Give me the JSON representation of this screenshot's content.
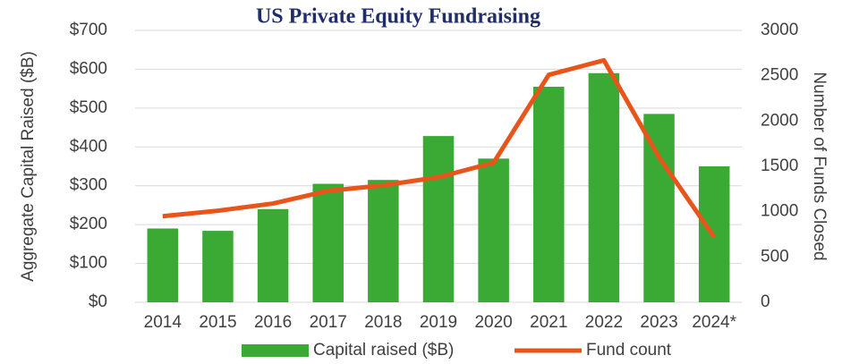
{
  "chart_data": {
    "type": "bar_line",
    "title": "US Private Equity Fundraising",
    "categories": [
      "2014",
      "2015",
      "2016",
      "2017",
      "2018",
      "2019",
      "2020",
      "2021",
      "2022",
      "2023",
      "2024*"
    ],
    "series": [
      {
        "name": "Capital raised ($B)",
        "type": "bar",
        "color": "#3aaa35",
        "values": [
          190,
          184,
          240,
          305,
          315,
          428,
          370,
          555,
          590,
          485,
          350
        ]
      },
      {
        "name": "Fund count",
        "type": "line",
        "axis": "y2",
        "color": "#e8541a",
        "values": [
          950,
          1010,
          1090,
          1230,
          1290,
          1380,
          1540,
          2510,
          2670,
          1600,
          720
        ]
      }
    ],
    "ylabel": "Aggregate Capital Raised ($B)",
    "y2label": "Number of Funds Closed",
    "ylim": [
      0,
      700
    ],
    "yticks": [
      {
        "value": 0,
        "label": "$0"
      },
      {
        "value": 100,
        "label": "$100"
      },
      {
        "value": 200,
        "label": "$200"
      },
      {
        "value": 300,
        "label": "$300"
      },
      {
        "value": 400,
        "label": "$400"
      },
      {
        "value": 500,
        "label": "$500"
      },
      {
        "value": 600,
        "label": "$600"
      },
      {
        "value": 700,
        "label": "$700"
      }
    ],
    "y2lim": [
      0,
      3000
    ],
    "y2ticks": [
      0,
      500,
      1000,
      1500,
      2000,
      2500,
      3000
    ],
    "grid": true,
    "legend": "bottom"
  }
}
